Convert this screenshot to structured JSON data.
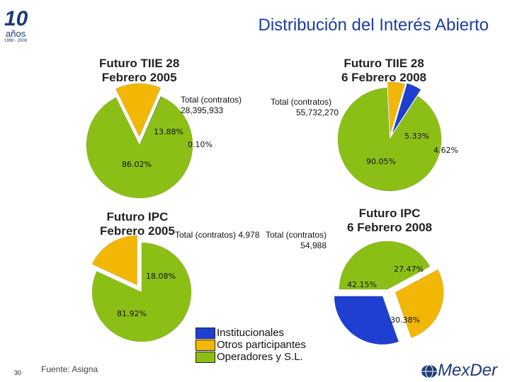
{
  "page_title": "Distribución del Interés Abierto",
  "logo": {
    "years_number": "10",
    "years_word": "años",
    "years_range": "1998 - 2008",
    "brand": "MexDer"
  },
  "footer": {
    "source": "Fuente: Asigna",
    "page_number": "30"
  },
  "legend": [
    {
      "label": "Institucionales",
      "color": "#1f3fd0"
    },
    {
      "label": "Otros participantes",
      "color": "#f2b705"
    },
    {
      "label": "Operadores y S.L.",
      "color": "#8cbf15"
    }
  ],
  "chart_data": [
    {
      "type": "pie",
      "title_line1": "Futuro TIIE 28",
      "title_line2": "Febrero 2005",
      "total_line1": "Total (contratos)",
      "total_line2": "28,395,933",
      "categories": [
        "Institucionales",
        "Otros participantes",
        "Operadores y S.L."
      ],
      "values": [
        0.1,
        13.88,
        86.02
      ],
      "labels": [
        "0.10%",
        "13.88%",
        "86.02%"
      ]
    },
    {
      "type": "pie",
      "title_line1": "Futuro TIIE 28",
      "title_line2": "6 Febrero 2008",
      "total_line1": "Total (contratos)",
      "total_line2": "55,732,270",
      "categories": [
        "Institucionales",
        "Otros participantes",
        "Operadores y S.L."
      ],
      "values": [
        4.62,
        5.33,
        90.05
      ],
      "labels": [
        "4.62%",
        "5.33%",
        "90.05%"
      ]
    },
    {
      "type": "pie",
      "title_line1": "Futuro IPC",
      "title_line2": "Febrero 2005",
      "total_line1": "Total (contratos) 4,978",
      "total_line2": "",
      "categories": [
        "Institucionales",
        "Otros participantes",
        "Operadores y S.L."
      ],
      "values": [
        0,
        18.08,
        81.92
      ],
      "labels": [
        "",
        "18.08%",
        "81.92%"
      ]
    },
    {
      "type": "pie",
      "title_line1": "Futuro IPC",
      "title_line2": "6 Febrero 2008",
      "total_line1": "Total (contratos)",
      "total_line2": "54,988",
      "categories": [
        "Institucionales",
        "Otros participantes",
        "Operadores y S.L."
      ],
      "values": [
        30.38,
        27.47,
        42.15
      ],
      "labels": [
        "30.38%",
        "27.47%",
        "42.15%"
      ]
    }
  ]
}
